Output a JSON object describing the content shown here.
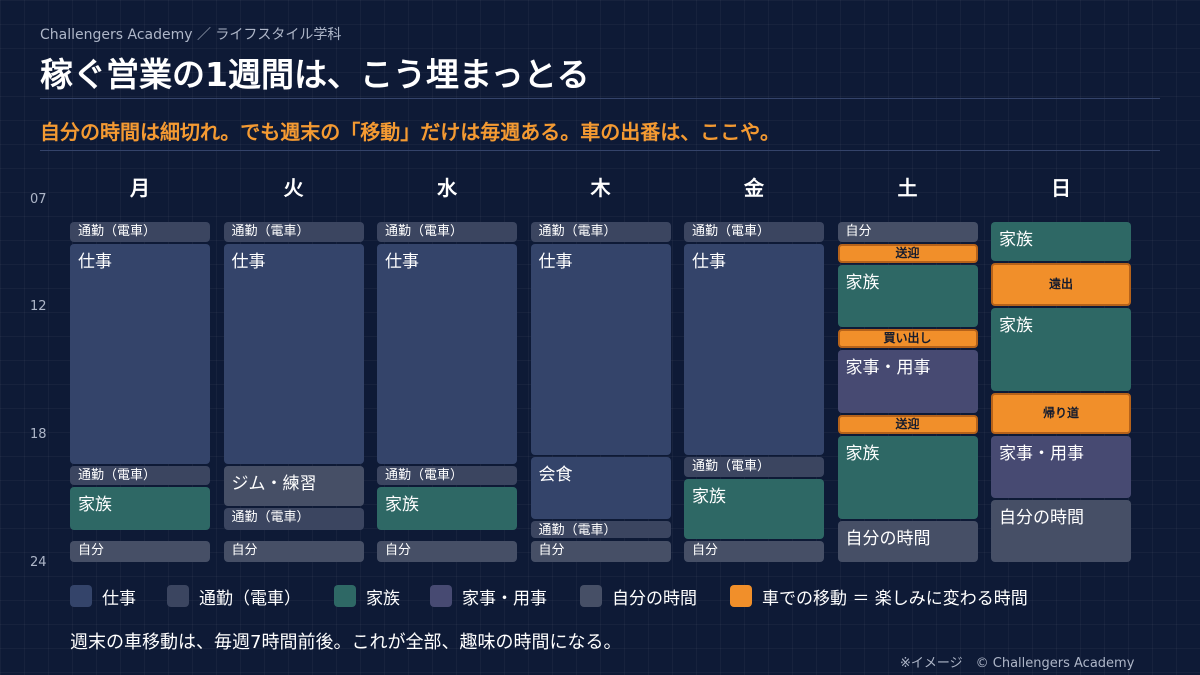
{
  "header": {
    "brand": "Challengers Academy ／ ライフスタイル学科",
    "title": "稼ぐ営業の1週間は、こう埋まっとる",
    "subtitle": "自分の時間は細切れ。でも週末の「移動」だけは毎週ある。車の出番は、ここや。"
  },
  "chart_data": {
    "type": "weekly-schedule",
    "days": [
      "月",
      "火",
      "水",
      "木",
      "金",
      "土",
      "日"
    ],
    "y_ticks": [
      "07",
      "12",
      "18",
      "24"
    ],
    "y_range_hours": [
      7,
      24
    ],
    "categories": {
      "work": {
        "label": "仕事",
        "color": "#34446a"
      },
      "commute": {
        "label": "通勤（電車）",
        "color": "#3b4560"
      },
      "family": {
        "label": "家族",
        "color": "#2e6865"
      },
      "chores": {
        "label": "家事・用事",
        "color": "#474a72"
      },
      "self": {
        "label": "自分の時間",
        "color": "#464f66"
      },
      "drive": {
        "label": "車での移動 ＝ 楽しみに変わる時間",
        "color": "#f18f2a"
      }
    },
    "events": [
      {
        "day": 0,
        "start": 8,
        "end": 9,
        "category": "commute",
        "label": "通勤（電車）"
      },
      {
        "day": 0,
        "start": 9,
        "end": 19.4,
        "category": "work",
        "label": "仕事"
      },
      {
        "day": 0,
        "start": 19.4,
        "end": 20.4,
        "category": "commute",
        "label": "通勤（電車）"
      },
      {
        "day": 0,
        "start": 20.4,
        "end": 22.5,
        "category": "family",
        "label": "家族"
      },
      {
        "day": 0,
        "start": 22.9,
        "end": 24,
        "category": "self",
        "label": "自分"
      },
      {
        "day": 1,
        "start": 8,
        "end": 9,
        "category": "commute",
        "label": "通勤（電車）"
      },
      {
        "day": 1,
        "start": 9,
        "end": 19.4,
        "category": "work",
        "label": "仕事"
      },
      {
        "day": 1,
        "start": 19.4,
        "end": 21.4,
        "category": "self",
        "label": "ジム・練習"
      },
      {
        "day": 1,
        "start": 21.4,
        "end": 22.5,
        "category": "commute",
        "label": "通勤（電車）"
      },
      {
        "day": 1,
        "start": 22.9,
        "end": 24,
        "category": "self",
        "label": "自分"
      },
      {
        "day": 2,
        "start": 8,
        "end": 9,
        "category": "commute",
        "label": "通勤（電車）"
      },
      {
        "day": 2,
        "start": 9,
        "end": 19.4,
        "category": "work",
        "label": "仕事"
      },
      {
        "day": 2,
        "start": 19.4,
        "end": 20.4,
        "category": "commute",
        "label": "通勤（電車）"
      },
      {
        "day": 2,
        "start": 20.4,
        "end": 22.5,
        "category": "family",
        "label": "家族"
      },
      {
        "day": 2,
        "start": 22.9,
        "end": 24,
        "category": "self",
        "label": "自分"
      },
      {
        "day": 3,
        "start": 8,
        "end": 9,
        "category": "commute",
        "label": "通勤（電車）"
      },
      {
        "day": 3,
        "start": 9,
        "end": 19,
        "category": "work",
        "label": "仕事"
      },
      {
        "day": 3,
        "start": 19,
        "end": 22,
        "category": "work",
        "label": "会食"
      },
      {
        "day": 3,
        "start": 22,
        "end": 22.9,
        "category": "commute",
        "label": "通勤（電車）"
      },
      {
        "day": 3,
        "start": 22.9,
        "end": 24,
        "category": "self",
        "label": "自分"
      },
      {
        "day": 4,
        "start": 8,
        "end": 9,
        "category": "commute",
        "label": "通勤（電車）"
      },
      {
        "day": 4,
        "start": 9,
        "end": 19,
        "category": "work",
        "label": "仕事"
      },
      {
        "day": 4,
        "start": 19,
        "end": 20,
        "category": "commute",
        "label": "通勤（電車）"
      },
      {
        "day": 4,
        "start": 20,
        "end": 22.9,
        "category": "family",
        "label": "家族"
      },
      {
        "day": 4,
        "start": 22.9,
        "end": 24,
        "category": "self",
        "label": "自分"
      },
      {
        "day": 5,
        "start": 8,
        "end": 9,
        "category": "self",
        "label": "自分"
      },
      {
        "day": 5,
        "start": 9,
        "end": 10,
        "category": "drive",
        "label": "送迎"
      },
      {
        "day": 5,
        "start": 10,
        "end": 13,
        "category": "family",
        "label": "家族"
      },
      {
        "day": 5,
        "start": 13,
        "end": 14,
        "category": "drive",
        "label": "買い出し"
      },
      {
        "day": 5,
        "start": 14,
        "end": 17,
        "category": "chores",
        "label": "家事・用事"
      },
      {
        "day": 5,
        "start": 17,
        "end": 18,
        "category": "drive",
        "label": "送迎"
      },
      {
        "day": 5,
        "start": 18,
        "end": 22,
        "category": "family",
        "label": "家族"
      },
      {
        "day": 5,
        "start": 22,
        "end": 24,
        "category": "self",
        "label": "自分の時間"
      },
      {
        "day": 6,
        "start": 8,
        "end": 9.9,
        "category": "family",
        "label": "家族"
      },
      {
        "day": 6,
        "start": 9.9,
        "end": 12,
        "category": "drive",
        "label": "遠出"
      },
      {
        "day": 6,
        "start": 12,
        "end": 16,
        "category": "family",
        "label": "家族"
      },
      {
        "day": 6,
        "start": 16,
        "end": 18,
        "category": "drive",
        "label": "帰り道"
      },
      {
        "day": 6,
        "start": 18,
        "end": 21,
        "category": "chores",
        "label": "家事・用事"
      },
      {
        "day": 6,
        "start": 21,
        "end": 24,
        "category": "self",
        "label": "自分の時間"
      }
    ]
  },
  "footer": {
    "note": "週末の車移動は、毎週7時間前後。これが全部、趣味の時間になる。",
    "credit": "※イメージ　© Challengers Academy"
  }
}
